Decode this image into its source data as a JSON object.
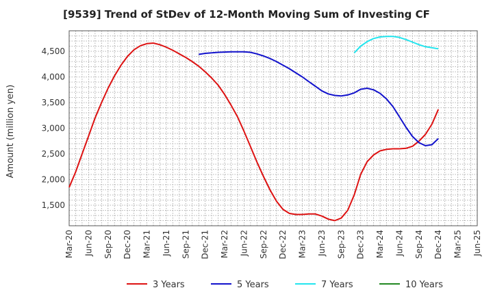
{
  "chart_data": {
    "type": "line",
    "title": "[9539]  Trend of StDev of 12-Month Moving Sum of Investing CF",
    "ylabel": "Amount (million yen)",
    "xlabel": "",
    "ylim": [
      1100,
      4900
    ],
    "xlim": [
      "Mar-20",
      "Jun-25"
    ],
    "grid": true,
    "legend_position": "bottom",
    "x_ticks": [
      "Mar-20",
      "Jun-20",
      "Sep-20",
      "Dec-20",
      "Mar-21",
      "Jun-21",
      "Sep-21",
      "Dec-21",
      "Mar-22",
      "Jun-22",
      "Sep-22",
      "Dec-22",
      "Mar-23",
      "Jun-23",
      "Sep-23",
      "Dec-23",
      "Mar-24",
      "Jun-24",
      "Sep-24",
      "Dec-24",
      "Mar-25",
      "Jun-25"
    ],
    "y_ticks": [
      "1,500",
      "2,000",
      "2,500",
      "3,000",
      "3,500",
      "4,000",
      "4,500"
    ],
    "y_tick_values": [
      1500,
      2000,
      2500,
      3000,
      3500,
      4000,
      4500
    ],
    "series": [
      {
        "name": "3 Years",
        "color": "#dd1111",
        "points": [
          [
            "2020-03",
            1850
          ],
          [
            "2020-04",
            2150
          ],
          [
            "2020-05",
            2500
          ],
          [
            "2020-06",
            2850
          ],
          [
            "2020-07",
            3200
          ],
          [
            "2020-08",
            3500
          ],
          [
            "2020-09",
            3780
          ],
          [
            "2020-10",
            4020
          ],
          [
            "2020-11",
            4230
          ],
          [
            "2020-12",
            4400
          ],
          [
            "2021-01",
            4530
          ],
          [
            "2021-02",
            4610
          ],
          [
            "2021-03",
            4650
          ],
          [
            "2021-04",
            4660
          ],
          [
            "2021-05",
            4630
          ],
          [
            "2021-06",
            4580
          ],
          [
            "2021-07",
            4520
          ],
          [
            "2021-08",
            4450
          ],
          [
            "2021-09",
            4380
          ],
          [
            "2021-10",
            4300
          ],
          [
            "2021-11",
            4210
          ],
          [
            "2021-12",
            4100
          ],
          [
            "2022-01",
            3980
          ],
          [
            "2022-02",
            3840
          ],
          [
            "2022-03",
            3660
          ],
          [
            "2022-04",
            3450
          ],
          [
            "2022-05",
            3220
          ],
          [
            "2022-06",
            2940
          ],
          [
            "2022-07",
            2640
          ],
          [
            "2022-08",
            2340
          ],
          [
            "2022-09",
            2060
          ],
          [
            "2022-10",
            1800
          ],
          [
            "2022-11",
            1580
          ],
          [
            "2022-12",
            1420
          ],
          [
            "2023-01",
            1340
          ],
          [
            "2023-02",
            1320
          ],
          [
            "2023-03",
            1320
          ],
          [
            "2023-04",
            1330
          ],
          [
            "2023-05",
            1330
          ],
          [
            "2023-06",
            1290
          ],
          [
            "2023-07",
            1230
          ],
          [
            "2023-08",
            1200
          ],
          [
            "2023-09",
            1250
          ],
          [
            "2023-10",
            1400
          ],
          [
            "2023-11",
            1700
          ],
          [
            "2023-12",
            2100
          ],
          [
            "2024-01",
            2350
          ],
          [
            "2024-02",
            2480
          ],
          [
            "2024-03",
            2560
          ],
          [
            "2024-04",
            2590
          ],
          [
            "2024-05",
            2600
          ],
          [
            "2024-06",
            2600
          ],
          [
            "2024-07",
            2610
          ],
          [
            "2024-08",
            2650
          ],
          [
            "2024-09",
            2750
          ],
          [
            "2024-10",
            2880
          ],
          [
            "2024-11",
            3080
          ],
          [
            "2024-12",
            3370
          ]
        ]
      },
      {
        "name": "5 Years",
        "color": "#1111cc",
        "points": [
          [
            "2021-11",
            4440
          ],
          [
            "2021-12",
            4460
          ],
          [
            "2022-01",
            4470
          ],
          [
            "2022-02",
            4480
          ],
          [
            "2022-03",
            4485
          ],
          [
            "2022-04",
            4490
          ],
          [
            "2022-05",
            4490
          ],
          [
            "2022-06",
            4490
          ],
          [
            "2022-07",
            4480
          ],
          [
            "2022-08",
            4450
          ],
          [
            "2022-09",
            4410
          ],
          [
            "2022-10",
            4360
          ],
          [
            "2022-11",
            4300
          ],
          [
            "2022-12",
            4230
          ],
          [
            "2023-01",
            4160
          ],
          [
            "2023-02",
            4080
          ],
          [
            "2023-03",
            4000
          ],
          [
            "2023-04",
            3910
          ],
          [
            "2023-05",
            3820
          ],
          [
            "2023-06",
            3730
          ],
          [
            "2023-07",
            3670
          ],
          [
            "2023-08",
            3640
          ],
          [
            "2023-09",
            3630
          ],
          [
            "2023-10",
            3650
          ],
          [
            "2023-11",
            3690
          ],
          [
            "2023-12",
            3760
          ],
          [
            "2024-01",
            3780
          ],
          [
            "2024-02",
            3750
          ],
          [
            "2024-03",
            3680
          ],
          [
            "2024-04",
            3570
          ],
          [
            "2024-05",
            3420
          ],
          [
            "2024-06",
            3220
          ],
          [
            "2024-07",
            3020
          ],
          [
            "2024-08",
            2840
          ],
          [
            "2024-09",
            2720
          ],
          [
            "2024-10",
            2660
          ],
          [
            "2024-11",
            2680
          ],
          [
            "2024-12",
            2800
          ]
        ]
      },
      {
        "name": "7 Years",
        "color": "#22e5ee",
        "points": [
          [
            "2023-11",
            4470
          ],
          [
            "2023-12",
            4600
          ],
          [
            "2024-01",
            4690
          ],
          [
            "2024-02",
            4750
          ],
          [
            "2024-03",
            4780
          ],
          [
            "2024-04",
            4790
          ],
          [
            "2024-05",
            4790
          ],
          [
            "2024-06",
            4770
          ],
          [
            "2024-07",
            4730
          ],
          [
            "2024-08",
            4680
          ],
          [
            "2024-09",
            4630
          ],
          [
            "2024-10",
            4590
          ],
          [
            "2024-11",
            4570
          ],
          [
            "2024-12",
            4550
          ]
        ]
      },
      {
        "name": "10 Years",
        "color": "#228822",
        "points": []
      }
    ]
  }
}
